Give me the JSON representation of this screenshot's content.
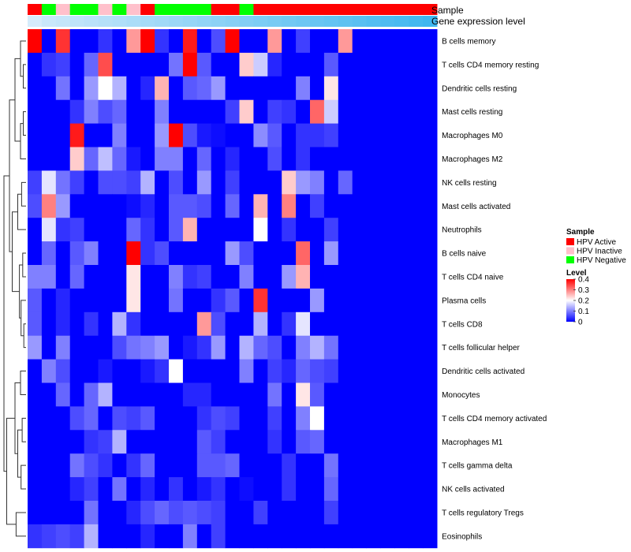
{
  "chart_data": {
    "type": "heatmap",
    "title": "",
    "annotation_labels": {
      "sample": "Sample",
      "expression": "Gene expression level"
    },
    "sample_groups": [
      "HPV Active",
      "HPV Negative",
      "HPV Inactive",
      "HPV Negative",
      "HPV Negative",
      "HPV Inactive",
      "HPV Negative",
      "HPV Inactive",
      "HPV Active",
      "HPV Negative",
      "HPV Negative",
      "HPV Negative",
      "HPV Negative",
      "HPV Active",
      "HPV Active",
      "HPV Negative",
      "HPV Active",
      "HPV Active",
      "HPV Active",
      "HPV Active",
      "HPV Active",
      "HPV Active",
      "HPV Active",
      "HPV Active",
      "HPV Active",
      "HPV Active",
      "HPV Active",
      "HPV Active",
      "HPV Active"
    ],
    "expression_level": [
      0.55,
      0.6,
      0.62,
      0.64,
      0.66,
      0.68,
      0.7,
      0.72,
      0.74,
      0.76,
      0.78,
      0.8,
      0.82,
      0.84,
      0.86,
      0.88,
      0.9,
      0.92,
      0.94,
      0.96,
      0.98,
      1.0,
      1.02,
      1.04,
      1.06,
      1.08,
      1.1,
      1.12,
      1.14
    ],
    "rows": [
      "B cells memory",
      "T cells CD4 memory resting",
      "Dendritic cells resting",
      "Mast cells resting",
      "Macrophages M0",
      "Macrophages M2",
      "NK cells resting",
      "Mast cells activated",
      "Neutrophils",
      "B cells naive",
      "T cells CD4 naive",
      "Plasma cells",
      "T cells CD8",
      "T cells follicular helper",
      "Dendritic cells activated",
      "Monocytes",
      "T cells CD4 memory activated",
      "Macrophages M1",
      "T cells gamma delta",
      "NK cells activated",
      "T cells regulatory  Tregs",
      "Eosinophils"
    ],
    "values": [
      [
        0.4,
        0,
        0.36,
        0,
        0,
        0.04,
        0,
        0.28,
        0.4,
        0.04,
        0,
        0.38,
        0,
        0.06,
        0.4,
        0,
        0,
        0.28,
        0,
        0.05,
        0,
        0,
        0.28,
        0,
        0,
        0,
        0,
        0,
        0
      ],
      [
        0,
        0.04,
        0.05,
        0,
        0.08,
        0.34,
        0,
        0,
        0,
        0,
        0.09,
        0.4,
        0.07,
        0,
        0,
        0.24,
        0.16,
        0.03,
        0,
        0,
        0,
        0.07,
        0,
        0,
        0,
        0,
        0,
        0,
        0
      ],
      [
        0,
        0,
        0.09,
        0,
        0.12,
        0.2,
        0.14,
        0,
        0.03,
        0.26,
        0,
        0.07,
        0.08,
        0.12,
        0,
        0,
        0,
        0,
        0,
        0.1,
        0,
        0.22,
        0,
        0,
        0,
        0,
        0,
        0,
        0
      ],
      [
        0,
        0,
        0,
        0.04,
        0.1,
        0.06,
        0.08,
        0,
        0,
        0.1,
        0,
        0,
        0,
        0,
        0.05,
        0.24,
        0,
        0.05,
        0.04,
        0,
        0.32,
        0.16,
        0,
        0,
        0,
        0,
        0,
        0,
        0
      ],
      [
        0,
        0,
        0,
        0.38,
        0,
        0,
        0.1,
        0,
        0,
        0.12,
        0.4,
        0.06,
        0.02,
        0.01,
        0,
        0,
        0.11,
        0.07,
        0,
        0.04,
        0.04,
        0.05,
        0,
        0,
        0,
        0,
        0,
        0,
        0
      ],
      [
        0,
        0,
        0,
        0.24,
        0.08,
        0.15,
        0.08,
        0.02,
        0,
        0.1,
        0.1,
        0,
        0.08,
        0,
        0.03,
        0,
        0,
        0.06,
        0,
        0.04,
        0,
        0,
        0,
        0,
        0,
        0,
        0,
        0,
        0
      ],
      [
        0.05,
        0.18,
        0.09,
        0.05,
        0,
        0.06,
        0.06,
        0.05,
        0.14,
        0,
        0.06,
        0,
        0.12,
        0,
        0.05,
        0,
        0,
        0,
        0.24,
        0.12,
        0.1,
        0,
        0.08,
        0,
        0,
        0,
        0,
        0,
        0
      ],
      [
        0.06,
        0.3,
        0.12,
        0,
        0,
        0,
        0,
        0.01,
        0.03,
        0,
        0.07,
        0.07,
        0.06,
        0,
        0.08,
        0,
        0.26,
        0,
        0.3,
        0,
        0.05,
        0,
        0,
        0,
        0,
        0,
        0,
        0,
        0
      ],
      [
        0,
        0.18,
        0.04,
        0.05,
        0,
        0,
        0,
        0.08,
        0.04,
        0,
        0.07,
        0.26,
        0,
        0,
        0,
        0,
        0.2,
        0,
        0.04,
        0,
        0,
        0.05,
        0,
        0,
        0,
        0,
        0,
        0,
        0
      ],
      [
        0,
        0.08,
        0,
        0.07,
        0.1,
        0,
        0,
        0.4,
        0.04,
        0.06,
        0,
        0,
        0,
        0,
        0.12,
        0.06,
        0,
        0,
        0,
        0.32,
        0,
        0.12,
        0,
        0,
        0,
        0,
        0,
        0,
        0
      ],
      [
        0.1,
        0.1,
        0,
        0.08,
        0,
        0,
        0,
        0.22,
        0,
        0,
        0.1,
        0.04,
        0.05,
        0,
        0,
        0.1,
        0,
        0,
        0.12,
        0.26,
        0,
        0,
        0,
        0,
        0,
        0,
        0,
        0,
        0
      ],
      [
        0.07,
        0,
        0.03,
        0,
        0,
        0,
        0,
        0.22,
        0,
        0,
        0.09,
        0,
        0,
        0.04,
        0.07,
        0,
        0.36,
        0,
        0,
        0,
        0.12,
        0,
        0,
        0,
        0,
        0,
        0,
        0,
        0
      ],
      [
        0.07,
        0,
        0.03,
        0,
        0.04,
        0,
        0.14,
        0.04,
        0,
        0,
        0,
        0,
        0.28,
        0.06,
        0,
        0,
        0.14,
        0,
        0.04,
        0.18,
        0,
        0,
        0,
        0,
        0,
        0,
        0,
        0,
        0
      ],
      [
        0.12,
        0,
        0.1,
        0,
        0,
        0,
        0.06,
        0.09,
        0.1,
        0.12,
        0,
        0.02,
        0.04,
        0.12,
        0,
        0.14,
        0.08,
        0.06,
        0,
        0.1,
        0.14,
        0.09,
        0,
        0,
        0,
        0,
        0,
        0,
        0
      ],
      [
        0,
        0.1,
        0.06,
        0,
        0,
        0.02,
        0,
        0,
        0.02,
        0.04,
        0.2,
        0,
        0,
        0,
        0,
        0.1,
        0,
        0.05,
        0.03,
        0.08,
        0.06,
        0.05,
        0,
        0,
        0,
        0,
        0,
        0,
        0
      ],
      [
        0,
        0,
        0.08,
        0,
        0.08,
        0.14,
        0,
        0,
        0,
        0,
        0,
        0.03,
        0.03,
        0,
        0,
        0,
        0,
        0.09,
        0,
        0.22,
        0.07,
        0,
        0,
        0,
        0,
        0,
        0,
        0,
        0
      ],
      [
        0,
        0,
        0,
        0.06,
        0.08,
        0,
        0.06,
        0.05,
        0.07,
        0,
        0,
        0,
        0.04,
        0.06,
        0.05,
        0,
        0,
        0.05,
        0,
        0.1,
        0.2,
        0,
        0,
        0,
        0,
        0,
        0,
        0,
        0
      ],
      [
        0,
        0,
        0,
        0,
        0.04,
        0.05,
        0.14,
        0,
        0,
        0,
        0,
        0,
        0.07,
        0.05,
        0,
        0,
        0,
        0.04,
        0,
        0.07,
        0.08,
        0,
        0,
        0,
        0,
        0,
        0,
        0,
        0
      ],
      [
        0,
        0,
        0,
        0.09,
        0.06,
        0.04,
        0,
        0.04,
        0.08,
        0,
        0,
        0,
        0.07,
        0.07,
        0.08,
        0,
        0,
        0,
        0.04,
        0,
        0,
        0.09,
        0,
        0,
        0,
        0,
        0,
        0,
        0
      ],
      [
        0,
        0,
        0,
        0.03,
        0.05,
        0,
        0.09,
        0,
        0.03,
        0,
        0.04,
        0,
        0.02,
        0.04,
        0,
        0.01,
        0,
        0,
        0.04,
        0,
        0,
        0.08,
        0,
        0,
        0,
        0,
        0,
        0,
        0
      ],
      [
        0,
        0,
        0,
        0,
        0.09,
        0,
        0,
        0.03,
        0.06,
        0.08,
        0.06,
        0.07,
        0.06,
        0.05,
        0,
        0,
        0.05,
        0,
        0,
        0,
        0,
        0.05,
        0,
        0,
        0,
        0,
        0,
        0,
        0
      ],
      [
        0.04,
        0.05,
        0.06,
        0.05,
        0.14,
        0,
        0,
        0,
        0.03,
        0,
        0,
        0.1,
        0,
        0.05,
        0,
        0,
        0,
        0,
        0,
        0,
        0,
        0,
        0,
        0,
        0,
        0,
        0,
        0,
        0
      ]
    ],
    "color_scale": {
      "min": 0,
      "max": 0.4,
      "low": "#0000ff",
      "mid": "#ffffff",
      "high": "#ff0000"
    },
    "legend": {
      "sample_title": "Sample",
      "groups": [
        {
          "name": "HPV Active",
          "color": "#ff0000"
        },
        {
          "name": "HPV Inactive",
          "color": "#ffc0cb"
        },
        {
          "name": "HPV Negative",
          "color": "#00ff00"
        }
      ],
      "level_title": "Level",
      "ticks": [
        "0.4",
        "0.3",
        "0.2",
        "0.1",
        "0"
      ],
      "tick_values": [
        0.4,
        0.3,
        0.2,
        0.1,
        0
      ]
    },
    "expression_colors": {
      "low": "#d6ecfb",
      "high": "#3fb7ef"
    }
  }
}
